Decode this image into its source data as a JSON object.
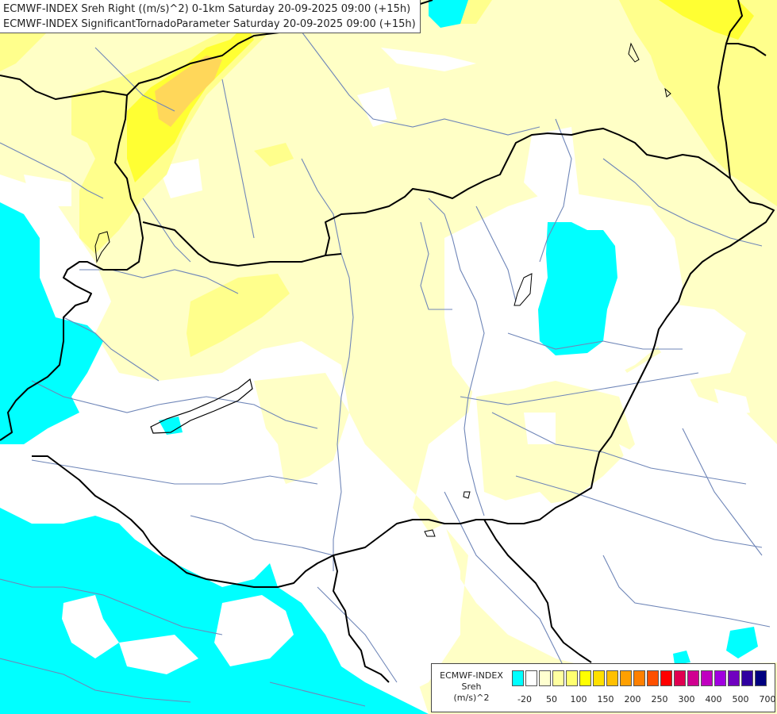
{
  "header": {
    "line1": "ECMWF-INDEX Sreh Right ((m/s)^2) 0-1km Saturday 20-09-2025 09:00 (+15h)",
    "line2": "ECMWF-INDEX SignificantTornadoParameter Saturday 20-09-2025 09:00 (+15h)"
  },
  "legend": {
    "source": "ECMWF-INDEX",
    "variable": "Sreh",
    "unit": "(m/s)^2",
    "colors": [
      "#00ffff",
      "#ffffff",
      "#ffffd0",
      "#ffffa0",
      "#ffff70",
      "#ffff00",
      "#ffe000",
      "#ffc000",
      "#ffa000",
      "#ff8000",
      "#ff5000",
      "#ff0000",
      "#e00050",
      "#d00090",
      "#c000c0",
      "#a000e0",
      "#7000c0",
      "#3000a0",
      "#000080"
    ],
    "ticks": [
      "-20",
      "50",
      "100",
      "150",
      "200",
      "250",
      "300",
      "400",
      "500",
      "700"
    ]
  },
  "colors": {
    "cyan": "#00ffff",
    "pale_yellow": "#ffffc6",
    "yellow": "#ffff8c",
    "bright_yellow": "#ffff33",
    "gold": "#ffd700",
    "border": "#000000",
    "river": "#6f86b8"
  }
}
